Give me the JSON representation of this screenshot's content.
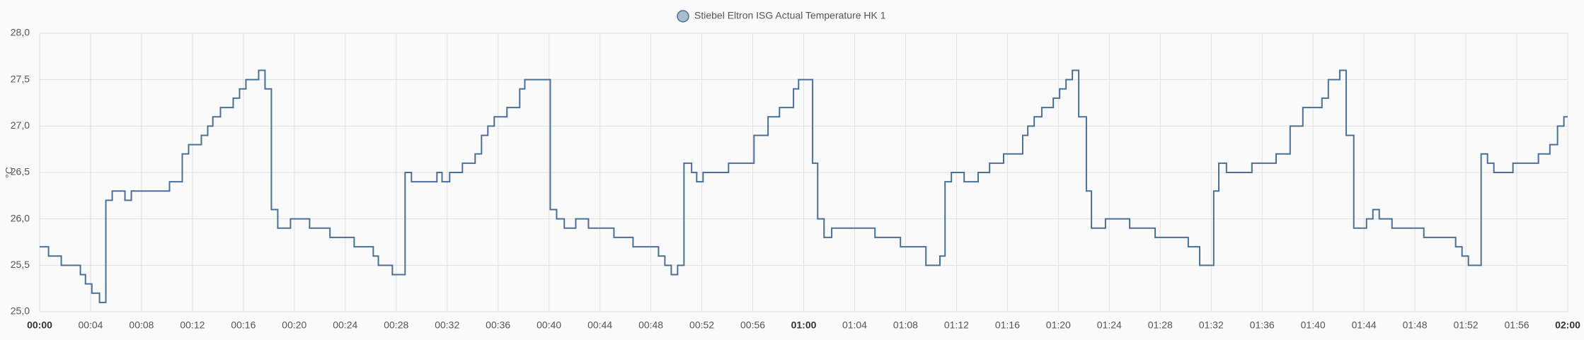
{
  "chart_data": {
    "type": "line",
    "step": true,
    "y_label": "°C",
    "xlim": [
      "00:00",
      "02:00"
    ],
    "xticks": [
      "00:00",
      "00:04",
      "00:08",
      "00:12",
      "00:16",
      "00:20",
      "00:24",
      "00:28",
      "00:32",
      "00:36",
      "00:40",
      "00:44",
      "00:48",
      "00:52",
      "00:56",
      "01:00",
      "01:04",
      "01:08",
      "01:12",
      "01:16",
      "01:20",
      "01:24",
      "01:28",
      "01:32",
      "01:36",
      "01:40",
      "01:44",
      "01:48",
      "01:52",
      "01:56",
      "02:00"
    ],
    "ylim": [
      25,
      28
    ],
    "yticks": [
      {
        "value": 25,
        "label": "25,0"
      },
      {
        "value": 25.5,
        "label": "25,5"
      },
      {
        "value": 26,
        "label": "26,0"
      },
      {
        "value": 26.5,
        "label": "26,5"
      },
      {
        "value": 27,
        "label": "27,0"
      },
      {
        "value": 27.5,
        "label": "27,5"
      },
      {
        "value": 28,
        "label": "28,0"
      }
    ],
    "grid": true,
    "legend": "top",
    "x": [
      "00:00:00",
      "00:00:42",
      "00:01:42",
      "00:03:12",
      "00:03:36",
      "00:04:06",
      "00:04:42",
      "00:05:12",
      "00:05:42",
      "00:06:42",
      "00:07:12",
      "00:10:12",
      "00:11:12",
      "00:11:42",
      "00:12:42",
      "00:13:12",
      "00:13:36",
      "00:14:12",
      "00:15:12",
      "00:15:42",
      "00:16:12",
      "00:17:12",
      "00:17:42",
      "00:18:12",
      "00:18:42",
      "00:19:42",
      "00:21:12",
      "00:22:48",
      "00:24:42",
      "00:26:12",
      "00:26:36",
      "00:27:42",
      "00:28:42",
      "00:29:12",
      "00:31:12",
      "00:31:36",
      "00:32:12",
      "00:33:12",
      "00:34:12",
      "00:34:42",
      "00:35:12",
      "00:35:42",
      "00:36:42",
      "00:37:42",
      "00:38:06",
      "00:40:06",
      "00:40:36",
      "00:41:12",
      "00:42:06",
      "00:43:06",
      "00:45:06",
      "00:46:36",
      "00:48:36",
      "00:49:06",
      "00:49:36",
      "00:50:06",
      "00:50:36",
      "00:51:12",
      "00:51:36",
      "00:52:06",
      "00:54:06",
      "00:56:06",
      "00:57:12",
      "00:58:06",
      "00:59:12",
      "00:59:36",
      "01:00:42",
      "01:01:06",
      "01:01:36",
      "01:02:12",
      "01:05:36",
      "01:07:36",
      "01:09:36",
      "01:10:42",
      "01:11:06",
      "01:11:36",
      "01:12:36",
      "01:13:42",
      "01:14:36",
      "01:15:42",
      "01:17:12",
      "01:17:36",
      "01:18:06",
      "01:18:42",
      "01:19:36",
      "01:20:06",
      "01:20:36",
      "01:21:06",
      "01:21:36",
      "01:22:12",
      "01:22:36",
      "01:23:42",
      "01:25:36",
      "01:27:36",
      "01:30:12",
      "01:31:06",
      "01:32:12",
      "01:32:36",
      "01:33:12",
      "01:35:12",
      "01:37:06",
      "01:38:12",
      "01:39:12",
      "01:40:42",
      "01:41:12",
      "01:42:06",
      "01:42:36",
      "01:43:12",
      "01:44:12",
      "01:44:42",
      "01:45:12",
      "01:46:12",
      "01:48:42",
      "01:51:12",
      "01:51:42",
      "01:52:12",
      "01:53:12",
      "01:53:42",
      "01:54:12",
      "01:55:42",
      "01:57:42",
      "01:58:36",
      "01:59:12",
      "01:59:42"
    ],
    "series": [
      {
        "name": "Stiebel Eltron ISG Actual Temperature HK 1",
        "color": "#4a7099",
        "values": [
          25.7,
          25.6,
          25.5,
          25.4,
          25.3,
          25.2,
          25.1,
          26.2,
          26.3,
          26.2,
          26.3,
          26.4,
          26.7,
          26.8,
          26.9,
          27.0,
          27.1,
          27.2,
          27.3,
          27.4,
          27.5,
          27.6,
          27.4,
          26.1,
          25.9,
          26.0,
          25.9,
          25.8,
          25.7,
          25.6,
          25.5,
          25.4,
          26.5,
          26.4,
          26.5,
          26.4,
          26.5,
          26.6,
          26.7,
          26.9,
          27.0,
          27.1,
          27.2,
          27.4,
          27.5,
          26.1,
          26.0,
          25.9,
          26.0,
          25.9,
          25.8,
          25.7,
          25.6,
          25.5,
          25.4,
          25.5,
          26.6,
          26.5,
          26.4,
          26.5,
          26.6,
          26.9,
          27.1,
          27.2,
          27.4,
          27.5,
          26.6,
          26.0,
          25.8,
          25.9,
          25.8,
          25.7,
          25.5,
          25.6,
          26.4,
          26.5,
          26.4,
          26.5,
          26.6,
          26.7,
          26.9,
          27.0,
          27.1,
          27.2,
          27.3,
          27.4,
          27.5,
          27.6,
          27.1,
          26.3,
          25.9,
          26.0,
          25.9,
          25.8,
          25.7,
          25.5,
          26.3,
          26.6,
          26.5,
          26.6,
          26.7,
          27.0,
          27.2,
          27.3,
          27.5,
          27.6,
          26.9,
          25.9,
          26.0,
          26.1,
          26.0,
          25.9,
          25.8,
          25.7,
          25.6,
          25.5,
          26.7,
          26.6,
          26.5,
          26.6,
          26.7,
          26.8,
          27.0,
          27.1
        ]
      }
    ]
  }
}
